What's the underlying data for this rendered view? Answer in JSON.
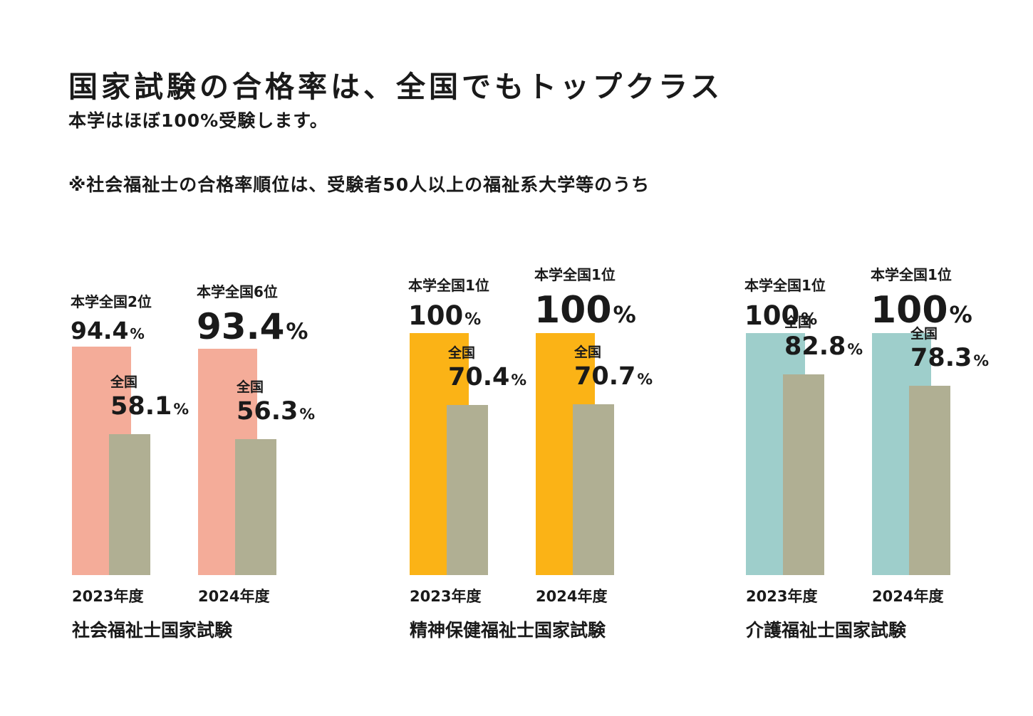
{
  "heading": {
    "title": "国家試験の合格率は、全国でもトップクラス",
    "subtitle": "本学はほぼ100%受験します。",
    "note": "※社会福祉士の合格率順位は、受験者50人以上の福祉系大学等のうち"
  },
  "colors": {
    "social_welfare": "#F4AC99",
    "mental_health": "#FBB316",
    "care_worker": "#9ECECB",
    "national": "#B0AF93",
    "text": "#1a1a1a"
  },
  "chart_data": [
    {
      "type": "bar",
      "exam": "社会福祉士国家試験",
      "categories": [
        "2023年度",
        "2024年度"
      ],
      "y_unit": "%",
      "ylim": [
        0,
        100
      ],
      "series": [
        {
          "name": "本学",
          "values": [
            94.4,
            93.4
          ],
          "display": [
            "94.4",
            "93.4"
          ],
          "rank": [
            "本学全国2位",
            "本学全国6位"
          ]
        },
        {
          "name": "全国",
          "values": [
            58.1,
            56.3
          ],
          "display": [
            "58.1",
            "56.3"
          ]
        }
      ]
    },
    {
      "type": "bar",
      "exam": "精神保健福祉士国家試験",
      "categories": [
        "2023年度",
        "2024年度"
      ],
      "y_unit": "%",
      "ylim": [
        0,
        100
      ],
      "series": [
        {
          "name": "本学",
          "values": [
            100,
            100
          ],
          "display": [
            "100",
            "100"
          ],
          "rank": [
            "本学全国1位",
            "本学全国1位"
          ]
        },
        {
          "name": "全国",
          "values": [
            70.4,
            70.7
          ],
          "display": [
            "70.4",
            "70.7"
          ]
        }
      ]
    },
    {
      "type": "bar",
      "exam": "介護福祉士国家試験",
      "categories": [
        "2023年度",
        "2024年度"
      ],
      "y_unit": "%",
      "ylim": [
        0,
        100
      ],
      "series": [
        {
          "name": "本学",
          "values": [
            100,
            100
          ],
          "display": [
            "100",
            "100"
          ],
          "rank": [
            "本学全国1位",
            "本学全国1位"
          ]
        },
        {
          "name": "全国",
          "values": [
            82.8,
            78.3
          ],
          "display": [
            "82.8",
            "78.3"
          ]
        }
      ]
    }
  ]
}
